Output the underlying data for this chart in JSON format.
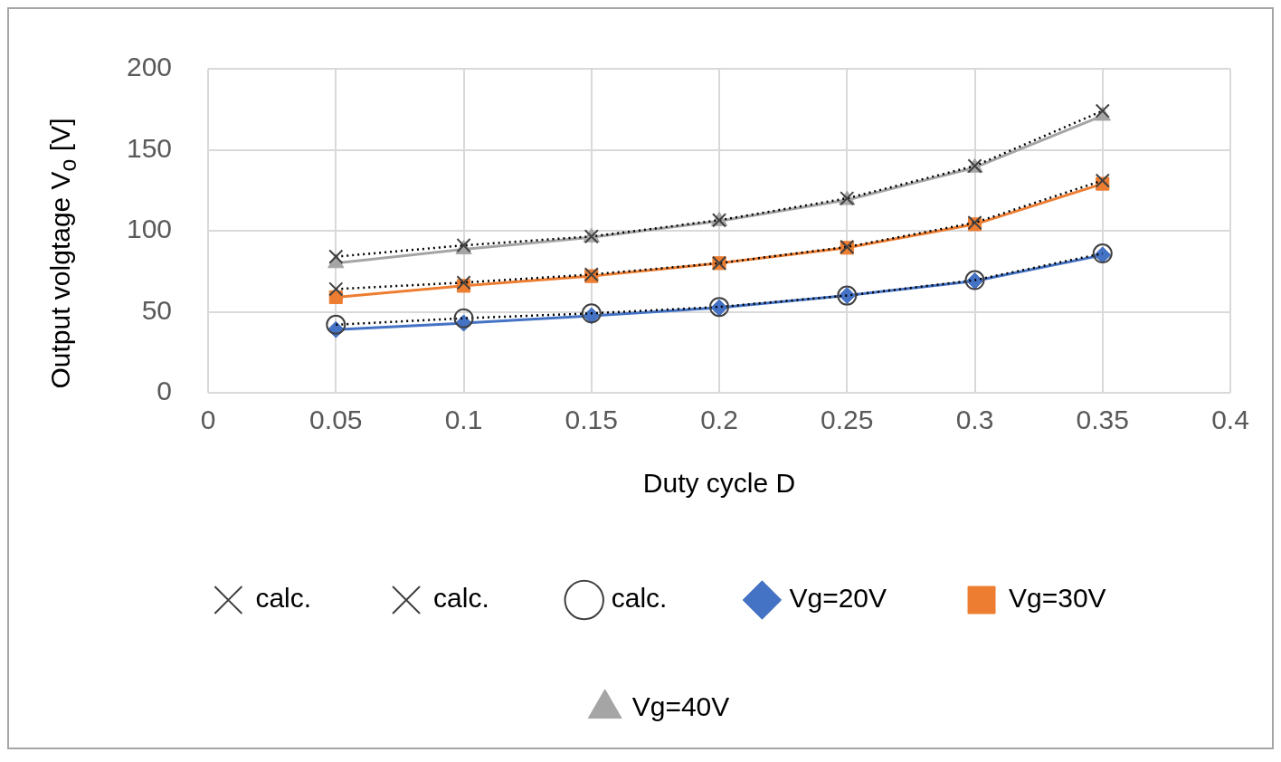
{
  "chart_data": {
    "type": "line",
    "xlabel": "Duty cycle D",
    "ylabel": "Output volgtage V$_{o}$ [V]",
    "x": [
      0.05,
      0.1,
      0.15,
      0.2,
      0.25,
      0.3,
      0.35
    ],
    "xlim": [
      0,
      0.4
    ],
    "xticks": [
      0,
      0.05,
      0.1,
      0.15,
      0.2,
      0.25,
      0.3,
      0.35,
      0.4
    ],
    "ylim": [
      0,
      200
    ],
    "yticks": [
      0,
      50,
      100,
      150,
      200
    ],
    "grid": true,
    "legend": "bottom",
    "series": [
      {
        "name": "calc.",
        "color": "#404040",
        "marker": "cross",
        "line_style": "dotted",
        "values": [
          84,
          91,
          96.5,
          106.5,
          120,
          140,
          174
        ]
      },
      {
        "name": "calc.",
        "color": "#404040",
        "marker": "cross",
        "line_style": "dotted",
        "values": [
          64,
          68,
          73,
          80,
          90,
          105,
          131
        ]
      },
      {
        "name": "calc.",
        "color": "#404040",
        "marker": "circle",
        "line_style": "dotted",
        "values": [
          42,
          46,
          49,
          53,
          60,
          69.5,
          86
        ]
      },
      {
        "name": "Vg=20V",
        "color": "#4472c4",
        "marker": "diamond",
        "line_style": "solid",
        "values": [
          39,
          43,
          47.5,
          52.5,
          60,
          69,
          85
        ]
      },
      {
        "name": "Vg=30V",
        "color": "#ed7d31",
        "marker": "square",
        "line_style": "solid",
        "values": [
          59,
          66,
          72,
          80,
          89.5,
          104,
          129
        ]
      },
      {
        "name": "Vg=40V",
        "color": "#a5a5a5",
        "marker": "triangle",
        "line_style": "solid",
        "values": [
          80,
          88.5,
          96,
          106,
          119,
          139,
          171
        ]
      }
    ]
  }
}
